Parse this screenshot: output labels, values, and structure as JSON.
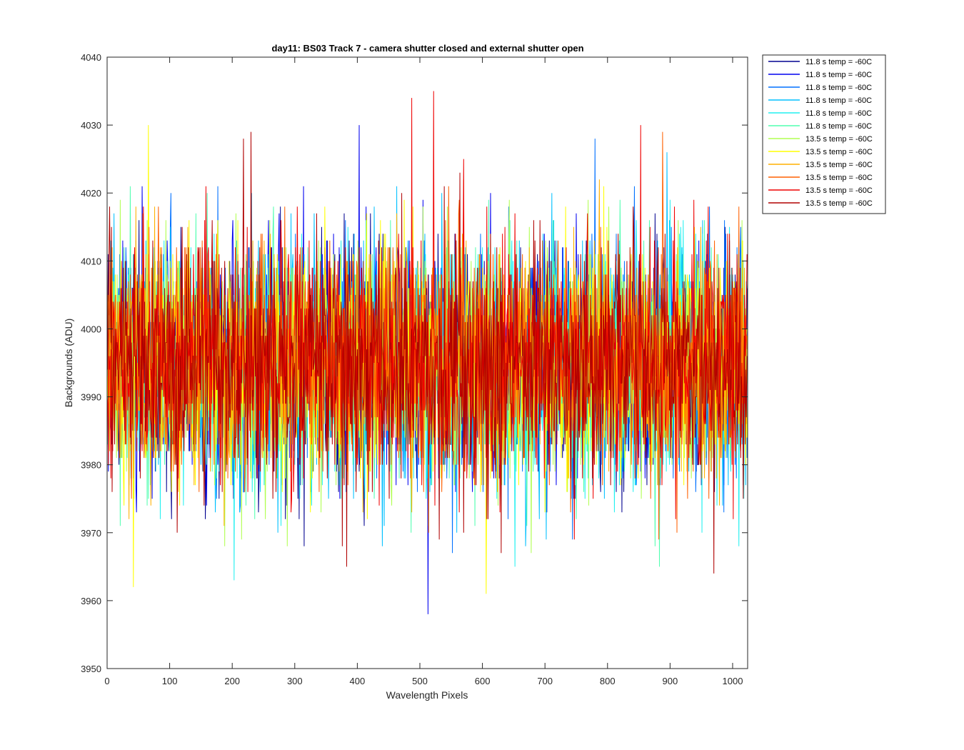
{
  "chart_data": {
    "type": "line",
    "title": "day11: BS03  Track 7 - camera shutter closed and external shutter open",
    "xlabel": "Wavelength Pixels",
    "ylabel": "Backgrounds (ADU)",
    "xlim": [
      0,
      1024
    ],
    "ylim": [
      3950,
      4040
    ],
    "xticks": [
      0,
      100,
      200,
      300,
      400,
      500,
      600,
      700,
      800,
      900,
      1000
    ],
    "yticks": [
      3950,
      3960,
      3970,
      3980,
      3990,
      4000,
      4010,
      4020,
      4030,
      4040
    ],
    "grid": false,
    "legend_position": "outside-top-right",
    "noise": {
      "mean": 3995,
      "std": 8.5,
      "min": 3960,
      "max": 4030,
      "points_per_series": 1024
    },
    "series": [
      {
        "name": "11.8 s temp = -60C",
        "color": "#00008f"
      },
      {
        "name": "11.8 s temp = -60C",
        "color": "#0000ef"
      },
      {
        "name": "11.8 s temp = -60C",
        "color": "#0070ff"
      },
      {
        "name": "11.8 s temp = -60C",
        "color": "#00c0ff"
      },
      {
        "name": "11.8 s temp = -60C",
        "color": "#20f0f0"
      },
      {
        "name": "11.8 s temp = -60C",
        "color": "#50ffb0"
      },
      {
        "name": "13.5 s temp = -60C",
        "color": "#b0ff50"
      },
      {
        "name": "13.5 s temp = -60C",
        "color": "#ffff00"
      },
      {
        "name": "13.5 s temp = -60C",
        "color": "#ffb000"
      },
      {
        "name": "13.5 s temp = -60C",
        "color": "#ff6000"
      },
      {
        "name": "13.5 s temp = -60C",
        "color": "#ef0000"
      },
      {
        "name": "13.5 s temp = -60C",
        "color": "#b00000"
      }
    ],
    "highlights": [
      {
        "series": 1,
        "x": 403,
        "y": 4030
      },
      {
        "series": 1,
        "x": 513,
        "y": 3958
      },
      {
        "series": 10,
        "x": 522,
        "y": 4035
      },
      {
        "series": 10,
        "x": 487,
        "y": 4034
      },
      {
        "series": 7,
        "x": 66,
        "y": 4030
      },
      {
        "series": 7,
        "x": 42,
        "y": 3962
      },
      {
        "series": 7,
        "x": 606,
        "y": 3961
      },
      {
        "series": 10,
        "x": 853,
        "y": 4030
      },
      {
        "series": 9,
        "x": 888,
        "y": 4029
      },
      {
        "series": 11,
        "x": 230,
        "y": 4029
      },
      {
        "series": 11,
        "x": 218,
        "y": 4028
      },
      {
        "series": 11,
        "x": 970,
        "y": 3964
      }
    ]
  }
}
